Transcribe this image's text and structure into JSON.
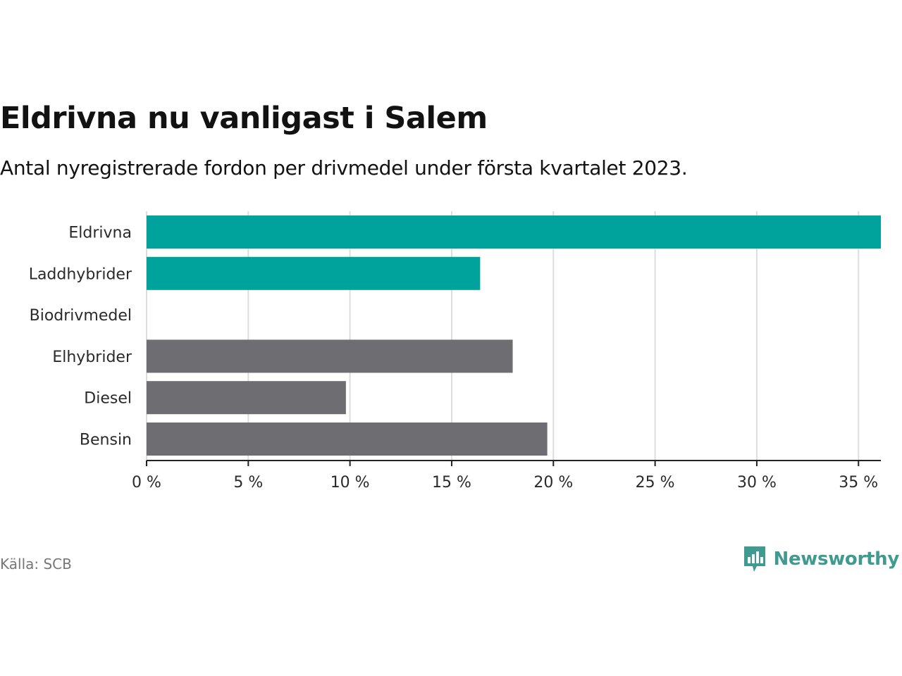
{
  "header": {
    "title": "Eldrivna nu vanligast i Salem",
    "subtitle": "Antal nyregistrerade fordon per drivmedel under första kvartalet 2023."
  },
  "footer": {
    "source": "Källa: SCB",
    "brand": "Newsworthy"
  },
  "colors": {
    "highlight": "#00a39b",
    "default": "#6e6d72",
    "brand": "#3f9a8f",
    "grid": "#dddddd",
    "axis": "#222222"
  },
  "chart_data": {
    "type": "bar",
    "orientation": "horizontal",
    "title": "Eldrivna nu vanligast i Salem",
    "subtitle": "Antal nyregistrerade fordon per drivmedel under första kvartalet 2023.",
    "xlabel": "",
    "ylabel": "",
    "categories": [
      "Eldrivna",
      "Laddhybrider",
      "Biodrivmedel",
      "Elhybrider",
      "Diesel",
      "Bensin"
    ],
    "values": [
      36.1,
      16.4,
      0,
      18.0,
      9.8,
      19.7
    ],
    "highlighted": [
      true,
      true,
      true,
      false,
      false,
      false
    ],
    "xlim": [
      0,
      36.1
    ],
    "ticks": [
      0,
      5,
      10,
      15,
      20,
      25,
      30,
      35
    ],
    "tick_labels": [
      "0 %",
      "5 %",
      "10 %",
      "15 %",
      "20 %",
      "25 %",
      "30 %",
      "35 %"
    ],
    "grid": true
  }
}
